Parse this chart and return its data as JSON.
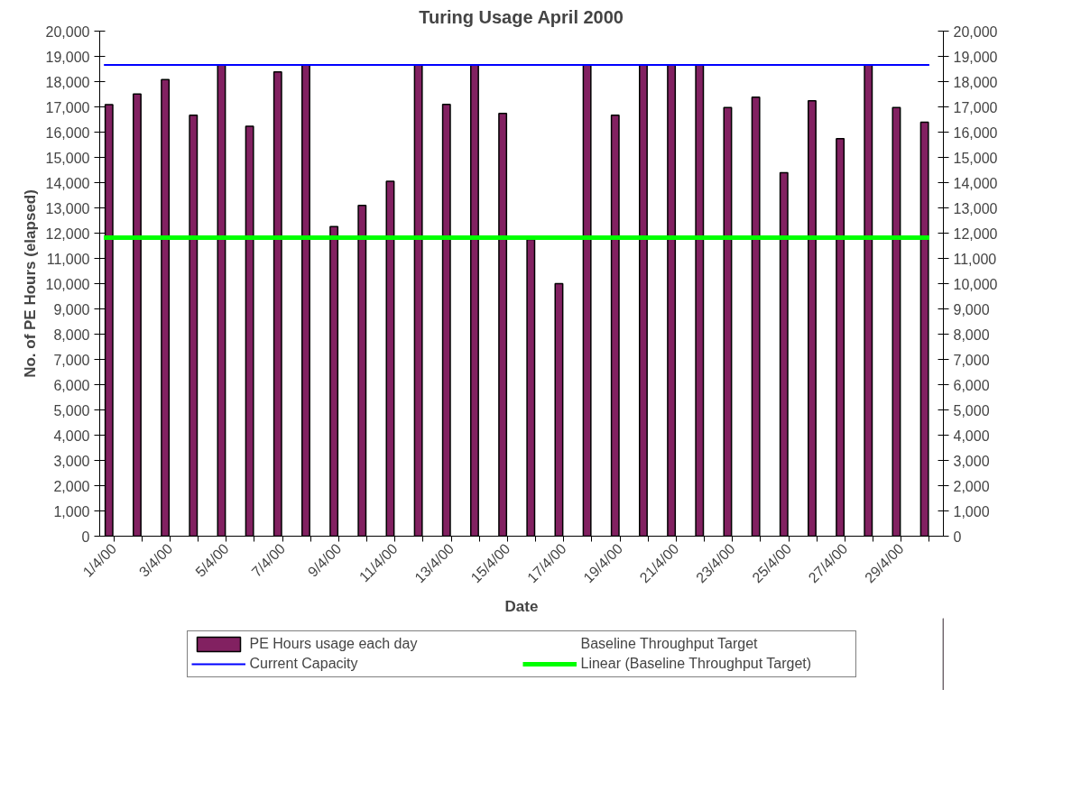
{
  "chart_data": {
    "type": "bar",
    "title": "Turing Usage April 2000",
    "xlabel": "Date",
    "ylabel": "No. of PE Hours (elapsed)",
    "categories": [
      "1/4/00",
      null,
      "3/4/00",
      null,
      "5/4/00",
      null,
      "7/4/00",
      null,
      "9/4/00",
      null,
      "11/4/00",
      null,
      "13/4/00",
      null,
      "15/4/00",
      null,
      "17/4/00",
      null,
      "19/4/00",
      null,
      "21/4/00",
      null,
      "23/4/00",
      null,
      "25/4/00",
      null,
      "27/4/00",
      null,
      "29/4/00",
      null
    ],
    "series": [
      {
        "name": "PE Hours usage each day",
        "color": "#822161",
        "values": [
          17090,
          17510,
          18080,
          16670,
          18660,
          16230,
          18380,
          18660,
          12260,
          13100,
          14050,
          18660,
          17100,
          18660,
          16740,
          11750,
          10000,
          18660,
          16670,
          18660,
          18660,
          18660,
          16970,
          17380,
          14390,
          17240,
          15740,
          18660,
          16970,
          16390
        ]
      },
      {
        "name": "Baseline Throughput Target",
        "type": "line",
        "values": [
          null,
          null,
          null,
          null,
          null,
          null,
          null,
          null,
          null,
          null,
          null,
          null,
          null,
          null,
          null,
          null,
          null,
          null,
          null,
          null,
          null,
          null,
          null,
          null,
          null,
          null,
          null,
          null,
          null,
          null
        ]
      }
    ],
    "ref_lines": [
      {
        "axis": "y",
        "value": 18660,
        "label": "Current Capacity",
        "color": "#0000ff"
      },
      {
        "axis": "y",
        "value": 11820,
        "label": "Linear (Baseline Throughput Target)",
        "color": "#00ff00"
      }
    ],
    "ylim": [
      0,
      20000
    ],
    "yticks": [
      {
        "value": 0,
        "label": "0"
      },
      {
        "value": 1000,
        "label": "1,000"
      },
      {
        "value": 2000,
        "label": "2,000"
      },
      {
        "value": 3000,
        "label": "3,000"
      },
      {
        "value": 4000,
        "label": "4,000"
      },
      {
        "value": 5000,
        "label": "5,000"
      },
      {
        "value": 6000,
        "label": "6,000"
      },
      {
        "value": 7000,
        "label": "7,000"
      },
      {
        "value": 8000,
        "label": "8,000"
      },
      {
        "value": 9000,
        "label": "9,000"
      },
      {
        "value": 10000,
        "label": "10,000"
      },
      {
        "value": 11000,
        "label": "11,000"
      },
      {
        "value": 12000,
        "label": "12,000"
      },
      {
        "value": 13000,
        "label": "13,000"
      },
      {
        "value": 14000,
        "label": "14,000"
      },
      {
        "value": 15000,
        "label": "15,000"
      },
      {
        "value": 16000,
        "label": "16,000"
      },
      {
        "value": 17000,
        "label": "17,000"
      },
      {
        "value": 18000,
        "label": "18,000"
      },
      {
        "value": 19000,
        "label": "19,000"
      },
      {
        "value": 20000,
        "label": "20,000"
      }
    ],
    "y2lim": [
      0,
      20000
    ],
    "y2ticks": [
      {
        "value": 0,
        "label": "0"
      },
      {
        "value": 1000,
        "label": "1,000"
      },
      {
        "value": 2000,
        "label": "2,000"
      },
      {
        "value": 3000,
        "label": "3,000"
      },
      {
        "value": 4000,
        "label": "4,000"
      },
      {
        "value": 5000,
        "label": "5,000"
      },
      {
        "value": 6000,
        "label": "6,000"
      },
      {
        "value": 7000,
        "label": "7,000"
      },
      {
        "value": 8000,
        "label": "8,000"
      },
      {
        "value": 9000,
        "label": "9,000"
      },
      {
        "value": 10000,
        "label": "10,000"
      },
      {
        "value": 11000,
        "label": "11,000"
      },
      {
        "value": 12000,
        "label": "12,000"
      },
      {
        "value": 13000,
        "label": "13,000"
      },
      {
        "value": 14000,
        "label": "14,000"
      },
      {
        "value": 15000,
        "label": "15,000"
      },
      {
        "value": 16000,
        "label": "16,000"
      },
      {
        "value": 17000,
        "label": "17,000"
      },
      {
        "value": 18000,
        "label": "18,000"
      },
      {
        "value": 19000,
        "label": "19,000"
      },
      {
        "value": 20000,
        "label": "20,000"
      }
    ],
    "grid": false,
    "legend": "bottom"
  }
}
